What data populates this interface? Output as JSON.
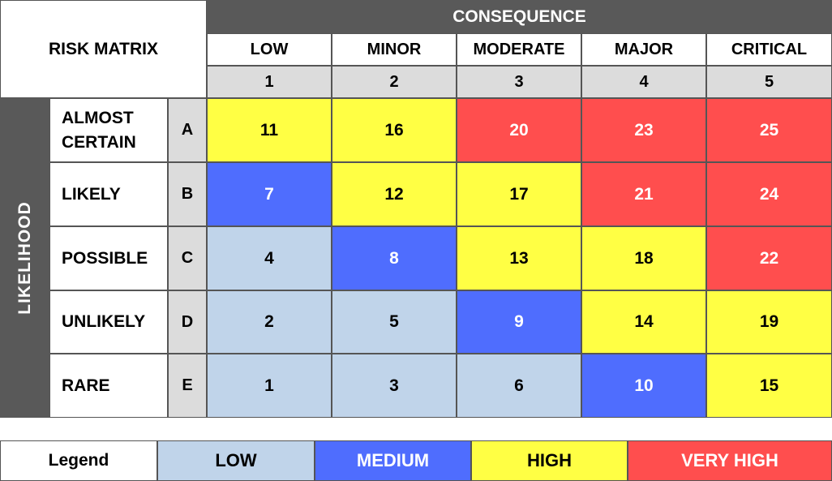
{
  "title": "RISK MATRIX",
  "consequence_header": "CONSEQUENCE",
  "likelihood_header": "LIKELIHOOD",
  "consequences": [
    {
      "label": "LOW",
      "number": "1"
    },
    {
      "label": "MINOR",
      "number": "2"
    },
    {
      "label": "MODERATE",
      "number": "3"
    },
    {
      "label": "MAJOR",
      "number": "4"
    },
    {
      "label": "CRITICAL",
      "number": "5"
    }
  ],
  "likelihoods": [
    {
      "label": "ALMOST CERTAIN",
      "letter": "A"
    },
    {
      "label": "LIKELY",
      "letter": "B"
    },
    {
      "label": "POSSIBLE",
      "letter": "C"
    },
    {
      "label": "UNLIKELY",
      "letter": "D"
    },
    {
      "label": "RARE",
      "letter": "E"
    }
  ],
  "matrix": [
    [
      {
        "value": "11",
        "level": "high"
      },
      {
        "value": "16",
        "level": "high"
      },
      {
        "value": "20",
        "level": "very_high"
      },
      {
        "value": "23",
        "level": "very_high"
      },
      {
        "value": "25",
        "level": "very_high"
      }
    ],
    [
      {
        "value": "7",
        "level": "medium"
      },
      {
        "value": "12",
        "level": "high"
      },
      {
        "value": "17",
        "level": "high"
      },
      {
        "value": "21",
        "level": "very_high"
      },
      {
        "value": "24",
        "level": "very_high"
      }
    ],
    [
      {
        "value": "4",
        "level": "low"
      },
      {
        "value": "8",
        "level": "medium"
      },
      {
        "value": "13",
        "level": "high"
      },
      {
        "value": "18",
        "level": "high"
      },
      {
        "value": "22",
        "level": "very_high"
      }
    ],
    [
      {
        "value": "2",
        "level": "low"
      },
      {
        "value": "5",
        "level": "low"
      },
      {
        "value": "9",
        "level": "medium"
      },
      {
        "value": "14",
        "level": "high"
      },
      {
        "value": "19",
        "level": "high"
      }
    ],
    [
      {
        "value": "1",
        "level": "low"
      },
      {
        "value": "3",
        "level": "low"
      },
      {
        "value": "6",
        "level": "low"
      },
      {
        "value": "10",
        "level": "medium"
      },
      {
        "value": "15",
        "level": "high"
      }
    ]
  ],
  "legend": {
    "title": "Legend",
    "items": [
      {
        "level": "low",
        "label": "LOW"
      },
      {
        "level": "medium",
        "label": "MEDIUM"
      },
      {
        "level": "high",
        "label": "HIGH"
      },
      {
        "level": "very_high",
        "label": "VERY HIGH"
      }
    ]
  },
  "colors": {
    "low": "#c0d4ea",
    "medium": "#4f6dfe",
    "high": "#ffff44",
    "very_high": "#ff4e4e",
    "header": "#595959",
    "subheader": "#dcdcdc"
  }
}
